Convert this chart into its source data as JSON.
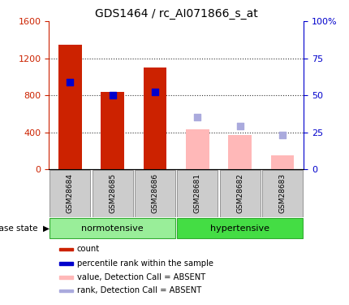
{
  "title": "GDS1464 / rc_AI071866_s_at",
  "samples": [
    "GSM28684",
    "GSM28685",
    "GSM28686",
    "GSM28681",
    "GSM28682",
    "GSM28683"
  ],
  "count_present": [
    1350,
    840,
    1100,
    0,
    0,
    0
  ],
  "count_absent": [
    0,
    0,
    0,
    430,
    370,
    150
  ],
  "pct_rank_present": [
    59,
    50,
    52,
    0,
    0,
    0
  ],
  "pct_rank_absent": [
    0,
    0,
    0,
    35,
    29,
    23
  ],
  "bar_color_present": "#cc2200",
  "bar_color_absent": "#ffb8b8",
  "dot_color_present": "#0000cc",
  "dot_color_absent": "#aaaadd",
  "left_ylim": [
    0,
    1600
  ],
  "right_ylim": [
    0,
    100
  ],
  "left_yticks": [
    0,
    400,
    800,
    1200,
    1600
  ],
  "right_yticks": [
    0,
    25,
    50,
    75,
    100
  ],
  "right_yticklabels": [
    "0",
    "25",
    "50",
    "75",
    "100%"
  ],
  "normotensive_color": "#99ee99",
  "hypertensive_color": "#44dd44",
  "group_border_color": "#33aa33",
  "sample_box_color": "#cccccc",
  "legend_items": [
    {
      "label": "count",
      "color": "#cc2200"
    },
    {
      "label": "percentile rank within the sample",
      "color": "#0000cc"
    },
    {
      "label": "value, Detection Call = ABSENT",
      "color": "#ffb8b8"
    },
    {
      "label": "rank, Detection Call = ABSENT",
      "color": "#aaaadd"
    }
  ],
  "bar_width": 0.55,
  "dot_size": 40,
  "grid_color": "#333333",
  "title_fontsize": 10
}
